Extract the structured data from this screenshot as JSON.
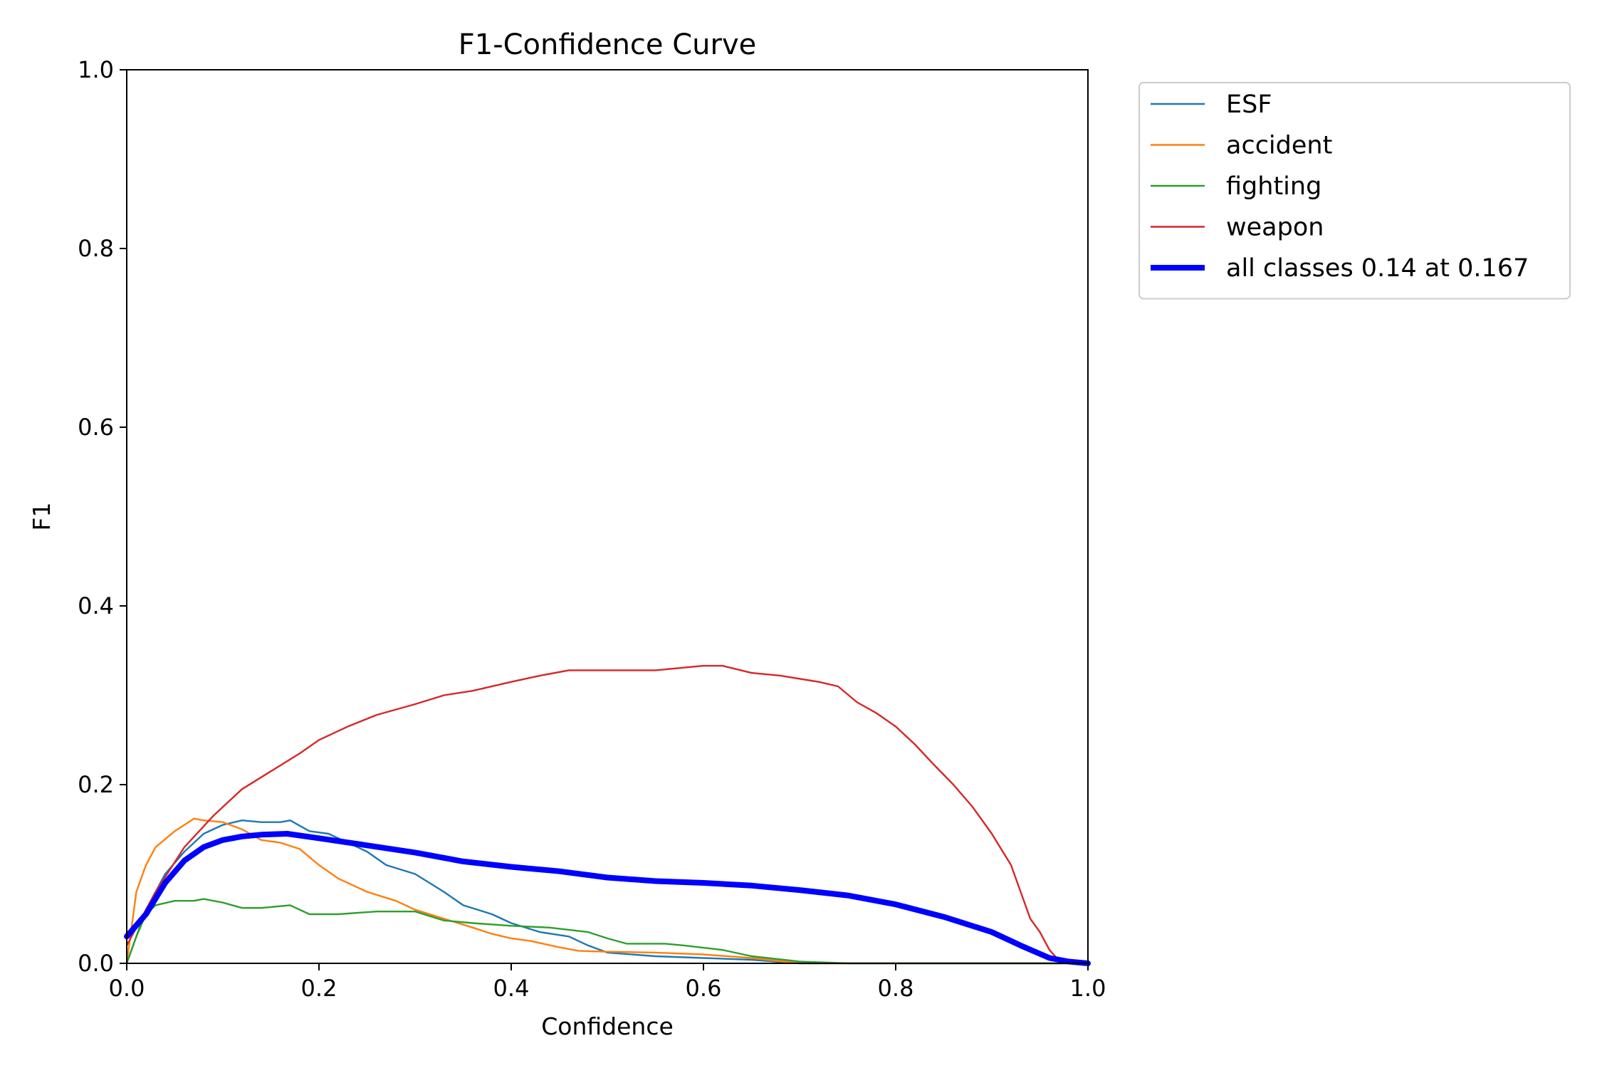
{
  "chart_data": {
    "type": "line",
    "title": "F1-Confidence Curve",
    "xlabel": "Confidence",
    "ylabel": "F1",
    "xlim": [
      0.0,
      1.0
    ],
    "ylim": [
      0.0,
      1.0
    ],
    "x_ticks": [
      "0.0",
      "0.2",
      "0.4",
      "0.6",
      "0.8",
      "1.0"
    ],
    "y_ticks": [
      "0.0",
      "0.2",
      "0.4",
      "0.6",
      "0.8",
      "1.0"
    ],
    "grid": false,
    "legend_position": "outside-top-right",
    "series": [
      {
        "name": "ESF",
        "color": "#1f77b4",
        "points": [
          [
            0.0,
            0.0
          ],
          [
            0.02,
            0.06
          ],
          [
            0.04,
            0.1
          ],
          [
            0.06,
            0.125
          ],
          [
            0.08,
            0.145
          ],
          [
            0.1,
            0.155
          ],
          [
            0.12,
            0.16
          ],
          [
            0.14,
            0.158
          ],
          [
            0.16,
            0.158
          ],
          [
            0.17,
            0.16
          ],
          [
            0.19,
            0.148
          ],
          [
            0.21,
            0.145
          ],
          [
            0.23,
            0.135
          ],
          [
            0.25,
            0.125
          ],
          [
            0.27,
            0.11
          ],
          [
            0.3,
            0.1
          ],
          [
            0.33,
            0.08
          ],
          [
            0.35,
            0.065
          ],
          [
            0.38,
            0.055
          ],
          [
            0.4,
            0.045
          ],
          [
            0.43,
            0.035
          ],
          [
            0.46,
            0.03
          ],
          [
            0.48,
            0.02
          ],
          [
            0.5,
            0.012
          ],
          [
            0.55,
            0.008
          ],
          [
            0.6,
            0.006
          ],
          [
            0.65,
            0.004
          ],
          [
            0.7,
            0.0
          ],
          [
            1.0,
            0.0
          ]
        ]
      },
      {
        "name": "accident",
        "color": "#ff7f0e",
        "points": [
          [
            0.0,
            0.0
          ],
          [
            0.01,
            0.08
          ],
          [
            0.02,
            0.11
          ],
          [
            0.03,
            0.13
          ],
          [
            0.05,
            0.148
          ],
          [
            0.07,
            0.162
          ],
          [
            0.08,
            0.16
          ],
          [
            0.1,
            0.158
          ],
          [
            0.12,
            0.15
          ],
          [
            0.14,
            0.138
          ],
          [
            0.16,
            0.135
          ],
          [
            0.18,
            0.128
          ],
          [
            0.2,
            0.11
          ],
          [
            0.22,
            0.095
          ],
          [
            0.25,
            0.08
          ],
          [
            0.28,
            0.07
          ],
          [
            0.3,
            0.06
          ],
          [
            0.33,
            0.05
          ],
          [
            0.36,
            0.04
          ],
          [
            0.38,
            0.033
          ],
          [
            0.4,
            0.028
          ],
          [
            0.42,
            0.025
          ],
          [
            0.45,
            0.018
          ],
          [
            0.47,
            0.014
          ],
          [
            0.5,
            0.013
          ],
          [
            0.55,
            0.012
          ],
          [
            0.6,
            0.01
          ],
          [
            0.65,
            0.006
          ],
          [
            0.7,
            0.0
          ],
          [
            1.0,
            0.0
          ]
        ]
      },
      {
        "name": "fighting",
        "color": "#2ca02c",
        "points": [
          [
            0.0,
            0.0
          ],
          [
            0.01,
            0.03
          ],
          [
            0.02,
            0.055
          ],
          [
            0.03,
            0.065
          ],
          [
            0.05,
            0.07
          ],
          [
            0.07,
            0.07
          ],
          [
            0.08,
            0.072
          ],
          [
            0.1,
            0.068
          ],
          [
            0.12,
            0.062
          ],
          [
            0.14,
            0.062
          ],
          [
            0.17,
            0.065
          ],
          [
            0.19,
            0.055
          ],
          [
            0.22,
            0.055
          ],
          [
            0.26,
            0.058
          ],
          [
            0.3,
            0.058
          ],
          [
            0.33,
            0.048
          ],
          [
            0.36,
            0.045
          ],
          [
            0.4,
            0.042
          ],
          [
            0.44,
            0.04
          ],
          [
            0.48,
            0.035
          ],
          [
            0.5,
            0.028
          ],
          [
            0.52,
            0.022
          ],
          [
            0.56,
            0.022
          ],
          [
            0.58,
            0.02
          ],
          [
            0.62,
            0.015
          ],
          [
            0.65,
            0.008
          ],
          [
            0.7,
            0.002
          ],
          [
            0.75,
            0.0
          ],
          [
            1.0,
            0.0
          ]
        ]
      },
      {
        "name": "weapon",
        "color": "#d62728",
        "points": [
          [
            0.0,
            0.02
          ],
          [
            0.03,
            0.08
          ],
          [
            0.06,
            0.13
          ],
          [
            0.09,
            0.165
          ],
          [
            0.12,
            0.195
          ],
          [
            0.15,
            0.215
          ],
          [
            0.18,
            0.235
          ],
          [
            0.2,
            0.25
          ],
          [
            0.23,
            0.265
          ],
          [
            0.26,
            0.278
          ],
          [
            0.3,
            0.29
          ],
          [
            0.33,
            0.3
          ],
          [
            0.36,
            0.305
          ],
          [
            0.4,
            0.315
          ],
          [
            0.43,
            0.322
          ],
          [
            0.46,
            0.328
          ],
          [
            0.5,
            0.328
          ],
          [
            0.55,
            0.328
          ],
          [
            0.6,
            0.333
          ],
          [
            0.62,
            0.333
          ],
          [
            0.65,
            0.325
          ],
          [
            0.68,
            0.322
          ],
          [
            0.72,
            0.315
          ],
          [
            0.74,
            0.31
          ],
          [
            0.76,
            0.292
          ],
          [
            0.78,
            0.28
          ],
          [
            0.8,
            0.265
          ],
          [
            0.82,
            0.245
          ],
          [
            0.84,
            0.222
          ],
          [
            0.86,
            0.2
          ],
          [
            0.88,
            0.175
          ],
          [
            0.9,
            0.145
          ],
          [
            0.92,
            0.11
          ],
          [
            0.93,
            0.08
          ],
          [
            0.94,
            0.05
          ],
          [
            0.95,
            0.035
          ],
          [
            0.96,
            0.015
          ],
          [
            0.97,
            0.003
          ],
          [
            0.98,
            0.0
          ],
          [
            1.0,
            0.0
          ]
        ]
      },
      {
        "name": "all classes 0.14 at 0.167",
        "color": "#0000ff",
        "thick": true,
        "points": [
          [
            0.0,
            0.03
          ],
          [
            0.02,
            0.055
          ],
          [
            0.04,
            0.09
          ],
          [
            0.06,
            0.115
          ],
          [
            0.08,
            0.13
          ],
          [
            0.1,
            0.138
          ],
          [
            0.12,
            0.142
          ],
          [
            0.14,
            0.144
          ],
          [
            0.167,
            0.145
          ],
          [
            0.2,
            0.14
          ],
          [
            0.25,
            0.132
          ],
          [
            0.3,
            0.124
          ],
          [
            0.35,
            0.114
          ],
          [
            0.4,
            0.108
          ],
          [
            0.45,
            0.103
          ],
          [
            0.5,
            0.096
          ],
          [
            0.55,
            0.092
          ],
          [
            0.6,
            0.09
          ],
          [
            0.65,
            0.087
          ],
          [
            0.7,
            0.082
          ],
          [
            0.75,
            0.076
          ],
          [
            0.8,
            0.066
          ],
          [
            0.85,
            0.052
          ],
          [
            0.9,
            0.035
          ],
          [
            0.93,
            0.02
          ],
          [
            0.96,
            0.006
          ],
          [
            0.98,
            0.002
          ],
          [
            1.0,
            0.0
          ]
        ]
      }
    ]
  }
}
